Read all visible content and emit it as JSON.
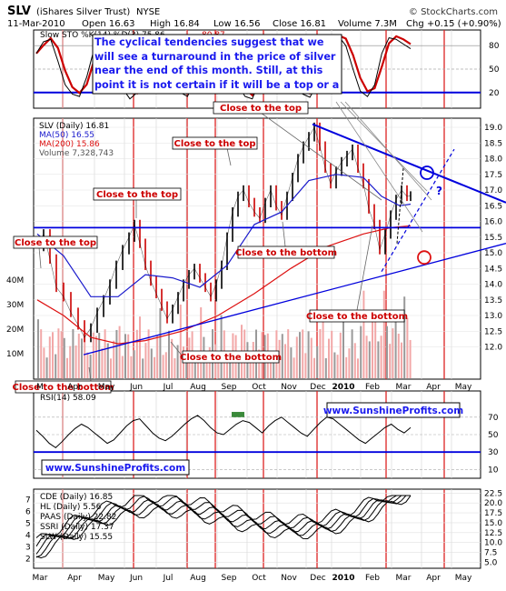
{
  "header": {
    "ticker": "SLV",
    "name": "(iShares Silver Trust)",
    "exchange": "NYSE",
    "watermark": "© StockCharts.com",
    "date": "11-Mar-2010",
    "open": "Open 16.63",
    "high": "High 16.84",
    "low": "Low 16.56",
    "close": "Close 16.81",
    "volume": "Volume 7.3M",
    "change": "Chg +0.15 (+0.90%)"
  },
  "sto_panel": {
    "label": "Slow STO %K(14) %D(3) 75.86,",
    "label_d": "80.87",
    "ticks": [
      "80",
      "50",
      "20"
    ],
    "tick_values": [
      80,
      50,
      20
    ],
    "comment": "The cyclical tendencies suggest that we will see a turnaround in the price of silver near the end of this month. Still, at this point it is not certain if it will be a top or a bottom."
  },
  "price_panel": {
    "legend": [
      "SLV (Daily) 16.81",
      "MA(50) 16.55",
      "MA(200) 15.86",
      "Volume 7,328,743"
    ],
    "legend_colors": [
      "#000000",
      "#1a1acc",
      "#dd1111",
      "#555555"
    ],
    "ticks": [
      "19.0",
      "18.5",
      "18.0",
      "17.5",
      "17.0",
      "16.5",
      "16.0",
      "15.5",
      "15.0",
      "14.5",
      "14.0",
      "13.5",
      "13.0",
      "12.5",
      "12.0"
    ],
    "tick_values": [
      19.0,
      18.5,
      18.0,
      17.5,
      17.0,
      16.5,
      16.0,
      15.5,
      15.0,
      14.5,
      14.0,
      13.5,
      13.0,
      12.5,
      12.0
    ],
    "volume_ticks": [
      "40M",
      "30M",
      "20M",
      "10M"
    ],
    "volume_tick_values": [
      40,
      30,
      20,
      10
    ],
    "annotations": [
      "Close to the top",
      "Close to the top",
      "Close to the top",
      "Close to the top",
      "Close to the bottom",
      "Close to the bottom",
      "Close to the bottom",
      "Close to the bottom"
    ],
    "question_mark": "?"
  },
  "month_axis_1": [
    "M",
    "Apr",
    "May",
    "Jun",
    "Jul",
    "Aug",
    "Sep",
    "Oct",
    "Nov",
    "Dec",
    "2010",
    "Feb",
    "Mar",
    "Apr",
    "May"
  ],
  "rsi_panel": {
    "label": "RSI(14) 58.09",
    "ticks": [
      "70",
      "50",
      "30",
      "10"
    ],
    "tick_values": [
      70,
      50,
      30,
      10
    ],
    "site": "www.SunshineProfits.com"
  },
  "comp_panel": {
    "site": "www.SunshineProfits.com",
    "legend": [
      "CDE (Daily) 16.85",
      "HL (Daily) 5.56",
      "PAAS (Daily) 22.82",
      "SSRI (Daily) 17.37",
      "SLW (Daily) 15.55"
    ],
    "ticks_left": [
      "7",
      "6",
      "5",
      "4",
      "3",
      "2"
    ],
    "ticks_left_values": [
      7,
      6,
      5,
      4,
      3,
      2
    ],
    "ticks_right": [
      "22.5",
      "20.0",
      "17.5",
      "15.0",
      "12.5",
      "10.0",
      "7.5",
      "5.0"
    ],
    "ticks_right_values": [
      22.5,
      20.0,
      17.5,
      15.0,
      12.5,
      10.0,
      7.5,
      5.0
    ]
  },
  "month_axis_2": [
    "Mar",
    "Apr",
    "May",
    "Jun",
    "Jul",
    "Aug",
    "Sep",
    "Oct",
    "Nov",
    "Dec",
    "2010",
    "Feb",
    "Mar",
    "Apr",
    "May"
  ],
  "colors": {
    "blue": "#0000dd",
    "red": "#cc0000",
    "cycle_line": "#dd2222",
    "panel_bg": "#ffffff",
    "volume": "#f2a8a8",
    "comment_text": "#1a1aee"
  },
  "chart_data": [
    {
      "type": "line",
      "title": "Slow STO %K(14) %D(3)",
      "k_last": 75.86,
      "d_last": 80.87,
      "y_range": [
        0,
        100
      ],
      "levels": [
        80,
        50,
        20
      ]
    },
    {
      "type": "line",
      "title": "SLV (Daily)",
      "last_close": 16.81,
      "ma50_last": 16.55,
      "ma200_last": 15.86,
      "volume_last": 7328743,
      "y_range": [
        11.7,
        19.3
      ],
      "x_categories": [
        "Mar",
        "Apr",
        "May",
        "Jun",
        "Jul",
        "Aug",
        "Sep",
        "Oct",
        "Nov",
        "Dec",
        "2010",
        "Feb",
        "Mar",
        "Apr",
        "May"
      ],
      "approx_monthly_close": [
        15.8,
        12.9,
        12.9,
        15.4,
        13.3,
        14.5,
        16.3,
        16.4,
        18.3,
        17.0,
        17.9,
        15.9,
        16.8
      ]
    },
    {
      "type": "line",
      "title": "RSI(14)",
      "last": 58.09,
      "levels": [
        70,
        50,
        30
      ]
    },
    {
      "type": "line",
      "title": "Price comparison",
      "series": [
        {
          "name": "CDE (Daily)",
          "last": 16.85
        },
        {
          "name": "HL (Daily)",
          "last": 5.56
        },
        {
          "name": "PAAS (Daily)",
          "last": 22.82
        },
        {
          "name": "SSRI (Daily)",
          "last": 17.37
        },
        {
          "name": "SLW (Daily)",
          "last": 15.55
        }
      ]
    }
  ]
}
